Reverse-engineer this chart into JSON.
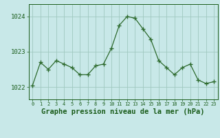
{
  "x": [
    0,
    1,
    2,
    3,
    4,
    5,
    6,
    7,
    8,
    9,
    10,
    11,
    12,
    13,
    14,
    15,
    16,
    17,
    18,
    19,
    20,
    21,
    22,
    23
  ],
  "y": [
    1022.05,
    1022.7,
    1022.5,
    1022.75,
    1022.65,
    1022.55,
    1022.35,
    1022.35,
    1022.6,
    1022.65,
    1023.1,
    1023.75,
    1024.0,
    1023.95,
    1023.65,
    1023.35,
    1022.75,
    1022.55,
    1022.35,
    1022.55,
    1022.65,
    1022.2,
    1022.1,
    1022.15
  ],
  "line_color": "#2d6a2d",
  "marker_color": "#2d6a2d",
  "bg_color": "#c8e8e8",
  "grid_color": "#a0c8c0",
  "title": "Graphe pression niveau de la mer (hPa)",
  "ylabel_ticks": [
    1022,
    1023,
    1024
  ],
  "ylim": [
    1021.65,
    1024.35
  ],
  "xlim": [
    -0.5,
    23.5
  ],
  "title_color": "#1a5c1a",
  "tick_color": "#1a5c1a",
  "title_fontsize": 7.5,
  "ytick_fontsize": 6.5,
  "xtick_fontsize": 5.0
}
